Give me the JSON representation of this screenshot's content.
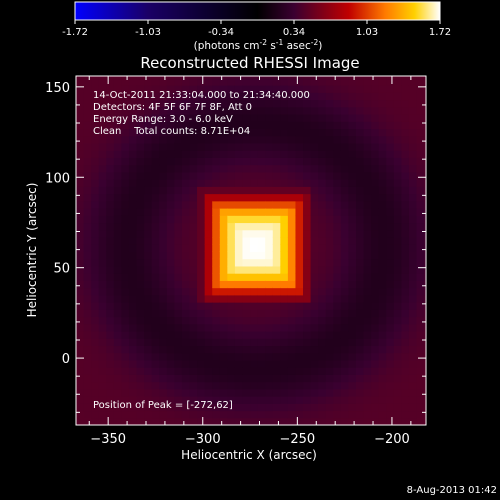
{
  "chart_data": {
    "type": "heatmap",
    "title": "Reconstructed RHESSI Image",
    "xlabel": "Heliocentric X (arcsec)",
    "ylabel": "Heliocentric Y (arcsec)",
    "xlim": [
      -367,
      -182
    ],
    "ylim": [
      -37,
      156
    ],
    "x_ticks": [
      -350,
      -300,
      -250,
      -200
    ],
    "y_ticks": [
      0,
      50,
      100,
      150
    ],
    "colorbar": {
      "min": -1.72,
      "max": 1.72,
      "ticks": [
        "-1.72",
        "-1.03",
        "-0.34",
        "0.34",
        "1.03",
        "1.72"
      ],
      "label_parts": [
        "(photons cm",
        "-2",
        " s",
        "-1",
        " asec",
        "-2",
        ")"
      ],
      "colormap": [
        "#0000ff",
        "#1a0066",
        "#000000",
        "#3a0030",
        "#c00000",
        "#ff7a00",
        "#ffd000",
        "#ffffff"
      ]
    },
    "annotations": [
      "14-Oct-2011 21:33:04.000 to 21:34:40.000",
      "Detectors: 4F 5F 6F 7F 8F, Att 0",
      "Energy Range: 3.0 - 6.0 keV",
      "Clean    Total counts: 8.71E+04"
    ],
    "peak_label": "Position of Peak = [-272,62]",
    "peak": [
      -272,
      62
    ],
    "source_peak_value": 1.72,
    "ring": {
      "center": [
        -272,
        62
      ],
      "radius_arcsec": 68,
      "value": 0.2
    },
    "background_value": 0.45
  },
  "footer": {
    "date": "8-Aug-2013 01:42"
  }
}
